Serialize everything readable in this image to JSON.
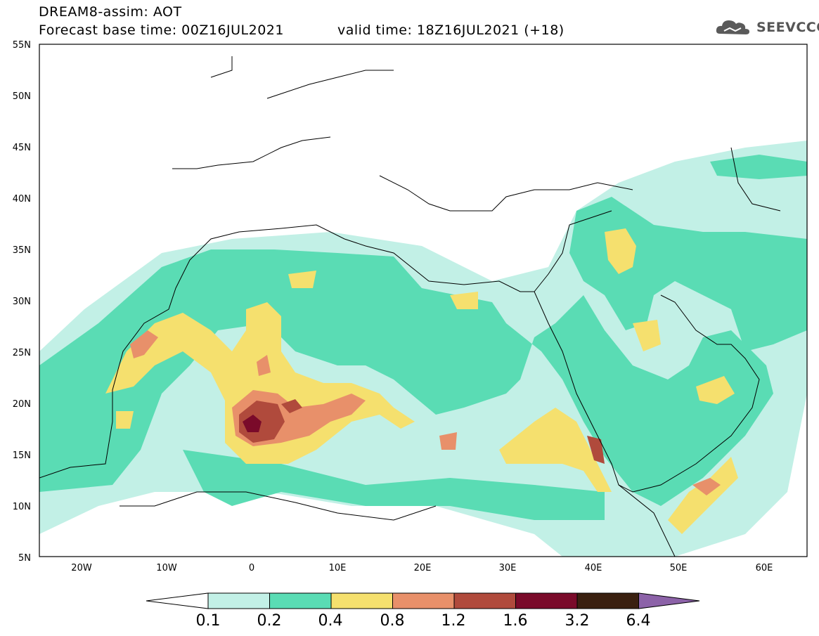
{
  "header": {
    "line1": "DREAM8-assim: AOT",
    "line2_left": "Forecast base time: 00Z16JUL2021",
    "line2_right": "valid time: 18Z16JUL2021 (+18)",
    "logo_text": "SEEVCCC"
  },
  "axes": {
    "lat_labels": [
      "55N",
      "50N",
      "45N",
      "40N",
      "35N",
      "30N",
      "25N",
      "20N",
      "15N",
      "10N",
      "5N"
    ],
    "lon_labels": [
      "20W",
      "10W",
      "0",
      "10E",
      "20E",
      "30E",
      "40E",
      "50E",
      "60E"
    ]
  },
  "colorbar": {
    "labels": [
      "0.1",
      "0.2",
      "0.4",
      "0.8",
      "1.2",
      "1.6",
      "3.2",
      "6.4"
    ],
    "colors": [
      "#ffffff",
      "#c2f0e6",
      "#5adcb4",
      "#f5e06e",
      "#e8906a",
      "#b04a3c",
      "#7a0a2a",
      "#3a2010",
      "#8c62a8"
    ]
  },
  "map": {
    "region": "North Africa, Mediterranean, Middle East",
    "field": "AOT"
  }
}
